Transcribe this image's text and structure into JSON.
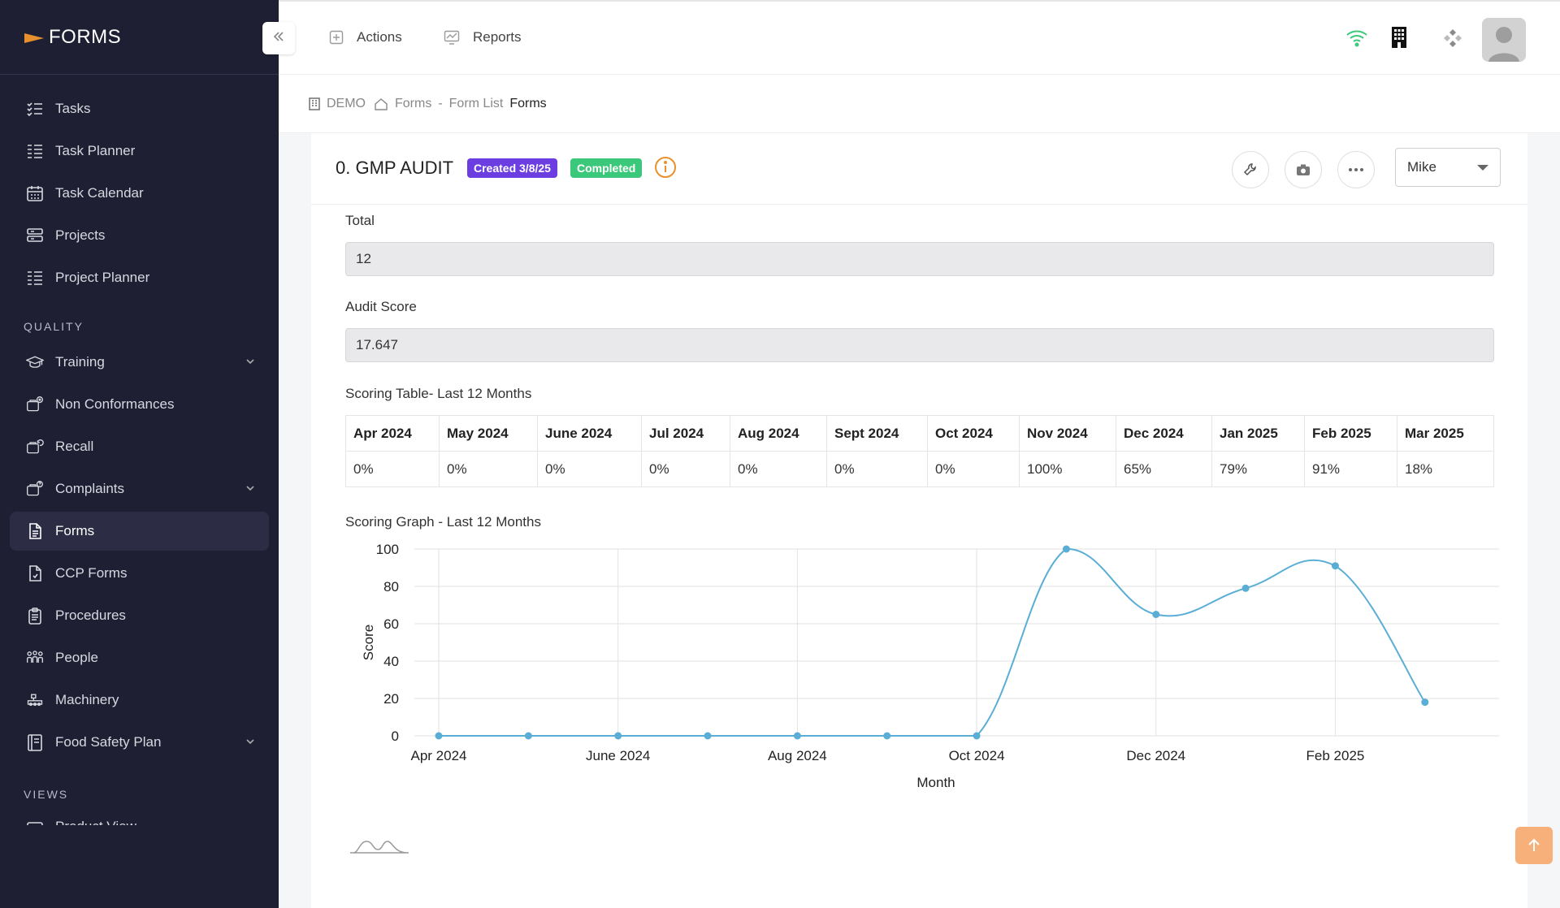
{
  "app": {
    "logo_text": "FORMS"
  },
  "sidebar": {
    "items_top": [
      {
        "label": "Tasks"
      },
      {
        "label": "Task Planner"
      },
      {
        "label": "Task Calendar"
      },
      {
        "label": "Projects"
      },
      {
        "label": "Project Planner"
      }
    ],
    "section_quality": "QUALITY",
    "items_quality": [
      {
        "label": "Training"
      },
      {
        "label": "Non Conformances"
      },
      {
        "label": "Recall"
      },
      {
        "label": "Complaints"
      },
      {
        "label": "Forms"
      },
      {
        "label": "CCP Forms"
      },
      {
        "label": "Procedures"
      },
      {
        "label": "People"
      },
      {
        "label": "Machinery"
      },
      {
        "label": "Food Safety Plan"
      }
    ],
    "section_views": "VIEWS",
    "items_views": [
      {
        "label": "Product View"
      }
    ]
  },
  "topbar": {
    "actions_label": "Actions",
    "reports_label": "Reports"
  },
  "breadcrumb": {
    "org": "DEMO",
    "forms": "Forms",
    "separator": "-",
    "form_list": "Form List",
    "current": "Forms"
  },
  "form": {
    "title": "0. GMP AUDIT",
    "created_badge": "Created 3/8/25",
    "status_badge": "Completed",
    "user_select": "Mike",
    "total_label": "Total",
    "total_value": "12",
    "audit_score_label": "Audit Score",
    "audit_score_value": "17.647",
    "table_title": "Scoring Table- Last 12 Months",
    "graph_title": "Scoring Graph - Last 12 Months"
  },
  "scoring_table": {
    "headers": [
      "Apr 2024",
      "May 2024",
      "June 2024",
      "Jul 2024",
      "Aug 2024",
      "Sept 2024",
      "Oct 2024",
      "Nov 2024",
      "Dec 2024",
      "Jan 2025",
      "Feb 2025",
      "Mar 2025"
    ],
    "values": [
      "0%",
      "0%",
      "0%",
      "0%",
      "0%",
      "0%",
      "0%",
      "100%",
      "65%",
      "79%",
      "91%",
      "18%"
    ]
  },
  "colors": {
    "sidebar_bg": "#1e1f33",
    "created_badge": "#6c3de0",
    "completed_badge": "#3cc87a",
    "line": "#5aaed6",
    "accent_orange": "#e8902e"
  },
  "chart_data": {
    "type": "line",
    "categories": [
      "Apr 2024",
      "May 2024",
      "June 2024",
      "Jul 2024",
      "Aug 2024",
      "Sept 2024",
      "Oct 2024",
      "Nov 2024",
      "Dec 2024",
      "Jan 2025",
      "Feb 2025",
      "Mar 2025"
    ],
    "x_tick_labels": [
      "Apr 2024",
      "June 2024",
      "Aug 2024",
      "Oct 2024",
      "Dec 2024",
      "Feb 2025"
    ],
    "y_ticks": [
      "0",
      "20",
      "40",
      "60",
      "80",
      "100"
    ],
    "series": [
      {
        "values": [
          0,
          0,
          0,
          0,
          0,
          0,
          0,
          100,
          65,
          79,
          91,
          18
        ]
      }
    ],
    "xlabel": "Month",
    "ylabel": "Score",
    "ylim": [
      0,
      100
    ],
    "grid": true
  }
}
